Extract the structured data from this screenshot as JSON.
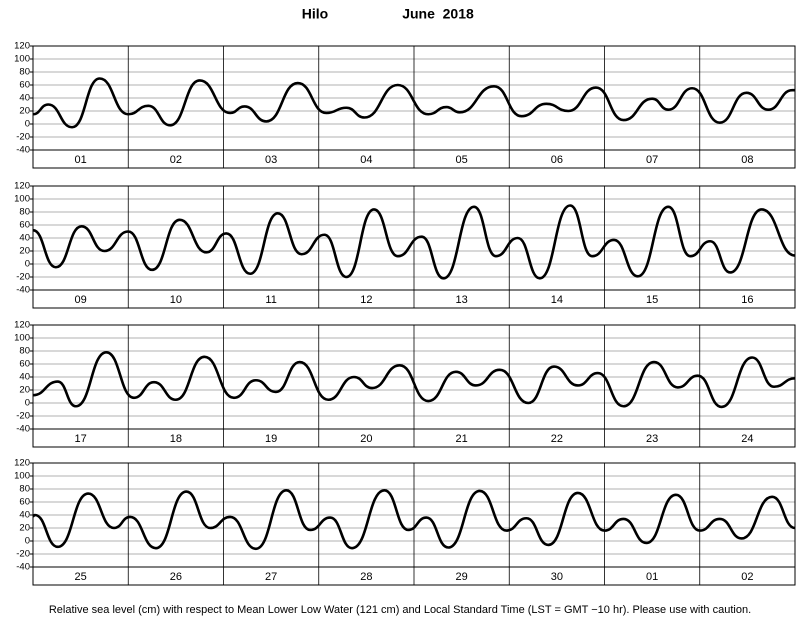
{
  "title": "Hilo",
  "subtitle": "June  2018",
  "caption": "Relative sea level (cm) with respect to Mean Lower Low Water (121 cm) and Local Standard Time (LST = GMT −10 hr). Please use with caution.",
  "chart_data": [
    {
      "type": "line",
      "categories": [
        "01",
        "02",
        "03",
        "04",
        "05",
        "06",
        "07",
        "08"
      ],
      "color": "#000000",
      "xlim": [
        0,
        8
      ],
      "ylim": [
        -40,
        120
      ],
      "yticks": [
        -40,
        -20,
        0,
        20,
        40,
        60,
        80,
        100,
        120
      ],
      "grid": true,
      "x": [
        0,
        0.16,
        0.41,
        0.7,
        1.0,
        1.21,
        1.44,
        1.75,
        2.07,
        2.22,
        2.45,
        2.78,
        3.08,
        3.29,
        3.48,
        3.83,
        4.15,
        4.34,
        4.48,
        4.84,
        5.13,
        5.39,
        5.62,
        5.91,
        6.2,
        6.5,
        6.67,
        6.92,
        7.21,
        7.49,
        7.72,
        7.97,
        8.0
      ],
      "values": [
        15,
        30,
        -5,
        70,
        15,
        28,
        -2,
        67,
        17,
        27,
        4,
        63,
        17,
        25,
        10,
        60,
        15,
        26,
        18,
        58,
        12,
        31,
        20,
        56,
        6,
        39,
        22,
        55,
        2,
        48,
        22,
        52,
        52
      ]
    },
    {
      "type": "line",
      "categories": [
        "09",
        "10",
        "11",
        "12",
        "13",
        "14",
        "15",
        "16"
      ],
      "color": "#000000",
      "xlim": [
        0,
        8
      ],
      "ylim": [
        -40,
        120
      ],
      "yticks": [
        -40,
        -20,
        0,
        20,
        40,
        60,
        80,
        100,
        120
      ],
      "grid": true,
      "x": [
        0,
        0.24,
        0.51,
        0.75,
        1.0,
        1.25,
        1.54,
        1.82,
        2.03,
        2.28,
        2.57,
        2.82,
        3.06,
        3.29,
        3.58,
        3.83,
        4.08,
        4.31,
        4.63,
        4.86,
        5.09,
        5.32,
        5.64,
        5.87,
        6.1,
        6.35,
        6.67,
        6.9,
        7.11,
        7.32,
        7.65,
        8.0
      ],
      "values": [
        52,
        -5,
        58,
        20,
        50,
        -9,
        68,
        18,
        47,
        -15,
        78,
        15,
        45,
        -20,
        84,
        12,
        42,
        -22,
        88,
        12,
        40,
        -22,
        90,
        12,
        37,
        -19,
        88,
        12,
        35,
        -13,
        84,
        13
      ]
    },
    {
      "type": "line",
      "categories": [
        "17",
        "18",
        "19",
        "20",
        "21",
        "22",
        "23",
        "24"
      ],
      "color": "#000000",
      "xlim": [
        0,
        8
      ],
      "ylim": [
        -40,
        120
      ],
      "yticks": [
        -40,
        -20,
        0,
        20,
        40,
        60,
        80,
        100,
        120
      ],
      "grid": true,
      "x": [
        0,
        0.26,
        0.45,
        0.77,
        1.06,
        1.27,
        1.5,
        1.8,
        2.11,
        2.34,
        2.55,
        2.8,
        3.1,
        3.37,
        3.56,
        3.85,
        4.15,
        4.44,
        4.65,
        4.9,
        5.2,
        5.47,
        5.72,
        5.93,
        6.2,
        6.52,
        6.77,
        6.98,
        7.23,
        7.55,
        7.78,
        8.0
      ],
      "values": [
        12,
        33,
        -5,
        78,
        8,
        32,
        5,
        71,
        8,
        35,
        17,
        63,
        5,
        40,
        23,
        58,
        3,
        48,
        27,
        51,
        0,
        56,
        27,
        46,
        -5,
        63,
        24,
        42,
        -6,
        70,
        25,
        38
      ]
    },
    {
      "type": "line",
      "categories": [
        "25",
        "26",
        "27",
        "28",
        "29",
        "30",
        "01",
        "02"
      ],
      "color": "#000000",
      "xlim": [
        0,
        8
      ],
      "ylim": [
        -40,
        120
      ],
      "yticks": [
        -40,
        -20,
        0,
        20,
        40,
        60,
        80,
        100,
        120
      ],
      "grid": true,
      "x": [
        0,
        0.02,
        0.26,
        0.58,
        0.85,
        1.02,
        1.29,
        1.61,
        1.86,
        2.07,
        2.34,
        2.66,
        2.91,
        3.12,
        3.35,
        3.69,
        3.94,
        4.13,
        4.36,
        4.69,
        4.97,
        5.18,
        5.41,
        5.72,
        6.0,
        6.2,
        6.44,
        6.75,
        7.0,
        7.21,
        7.44,
        7.76,
        8.0
      ],
      "values": [
        38,
        40,
        -9,
        73,
        20,
        37,
        -11,
        76,
        20,
        37,
        -12,
        78,
        17,
        36,
        -11,
        78,
        17,
        36,
        -10,
        77,
        16,
        35,
        -6,
        74,
        16,
        34,
        -3,
        71,
        16,
        34,
        4,
        68,
        20
      ]
    }
  ]
}
